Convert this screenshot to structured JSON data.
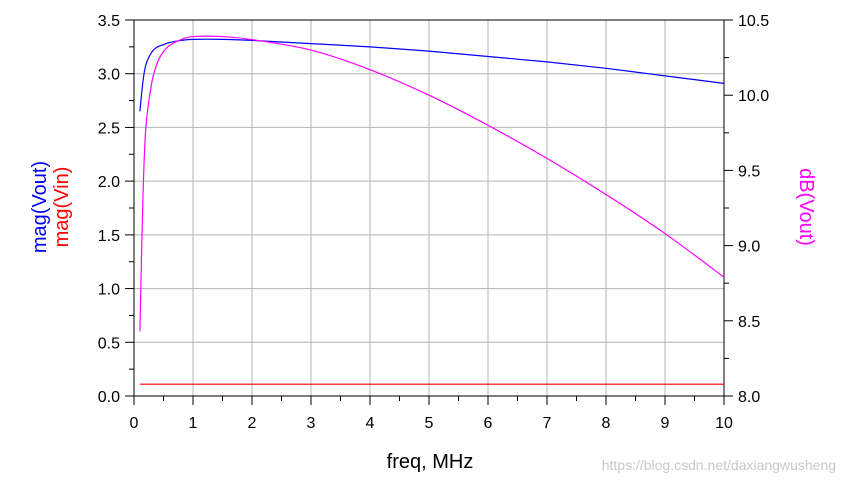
{
  "chart_data": {
    "type": "line",
    "xlabel": "freq, MHz",
    "xlim": [
      0,
      10
    ],
    "x_ticks": [
      "0",
      "1",
      "2",
      "3",
      "4",
      "5",
      "6",
      "7",
      "8",
      "9",
      "10"
    ],
    "grid": true,
    "left_axis": {
      "labels": [
        {
          "text": "mag(Vout)",
          "color": "#0000ff"
        },
        {
          "text": "mag(Vin)",
          "color": "#ff0000"
        }
      ],
      "ylim": [
        0,
        3.5
      ],
      "ticks": [
        "0.0",
        "0.5",
        "1.0",
        "1.5",
        "2.0",
        "2.5",
        "3.0",
        "3.5"
      ]
    },
    "right_axis": {
      "label": {
        "text": "dB(Vout)",
        "color": "#ff00ff"
      },
      "ylim": [
        8.0,
        10.5
      ],
      "ticks": [
        "8.0",
        "8.5",
        "9.0",
        "9.5",
        "10.0",
        "10.5"
      ]
    },
    "series": [
      {
        "name": "mag(Vout)",
        "axis": "left",
        "color": "#0000ff",
        "x": [
          0.1,
          0.15,
          0.2,
          0.3,
          0.4,
          0.5,
          0.6,
          0.8,
          1.0,
          1.5,
          2,
          3,
          4,
          5,
          6,
          7,
          8,
          9,
          10
        ],
        "y": [
          2.65,
          2.92,
          3.08,
          3.2,
          3.25,
          3.27,
          3.29,
          3.31,
          3.32,
          3.32,
          3.31,
          3.28,
          3.25,
          3.21,
          3.16,
          3.11,
          3.05,
          2.98,
          2.91
        ]
      },
      {
        "name": "mag(Vin)",
        "axis": "left",
        "color": "#ff0000",
        "x": [
          0.1,
          10
        ],
        "y": [
          0.11,
          0.11
        ]
      },
      {
        "name": "dB(Vout)",
        "axis": "right",
        "color": "#ff00ff",
        "x": [
          0.1,
          0.15,
          0.2,
          0.3,
          0.4,
          0.5,
          0.6,
          0.8,
          1.0,
          1.5,
          2,
          3,
          4,
          5,
          6,
          7,
          8,
          9,
          10
        ],
        "y": [
          8.43,
          9.3,
          9.78,
          10.08,
          10.22,
          10.29,
          10.33,
          10.37,
          10.39,
          10.39,
          10.37,
          10.3,
          10.17,
          10.0,
          9.8,
          9.58,
          9.34,
          9.08,
          8.79
        ]
      }
    ]
  },
  "watermark": "https://blog.csdn.net/daxiangwusheng"
}
